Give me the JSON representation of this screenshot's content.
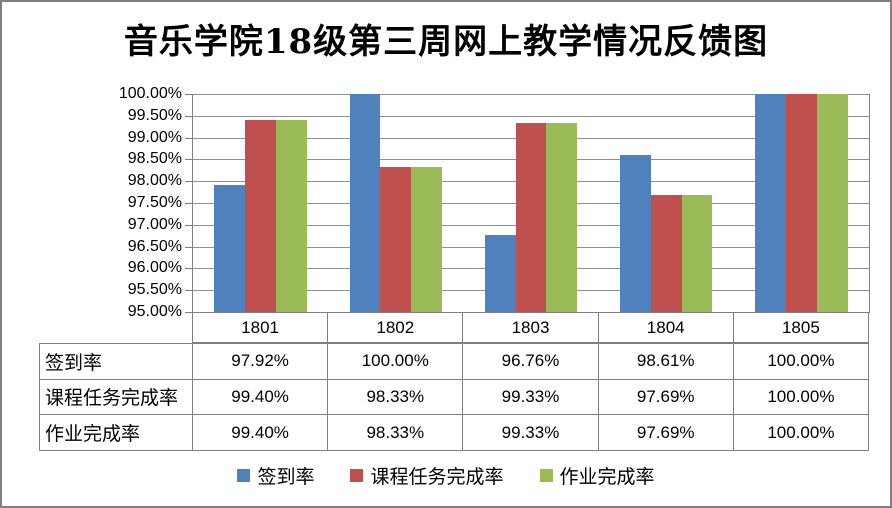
{
  "title": {
    "prefix": "音乐学院",
    "grade": "18",
    "suffix": "级第三周网上教学情况反馈图"
  },
  "chart_data": {
    "type": "bar",
    "title": "音乐学院18级第三周网上教学情况反馈图",
    "categories": [
      "1801",
      "1802",
      "1803",
      "1804",
      "1805"
    ],
    "series": [
      {
        "name": "签到率",
        "color": "#4F81BD",
        "values": [
          97.92,
          100.0,
          96.76,
          98.61,
          100.0
        ],
        "labels": [
          "97.92%",
          "100.00%",
          "96.76%",
          "98.61%",
          "100.00%"
        ]
      },
      {
        "name": "课程任务完成率",
        "color": "#C0504D",
        "values": [
          99.4,
          98.33,
          99.33,
          97.69,
          100.0
        ],
        "labels": [
          "99.40%",
          "98.33%",
          "99.33%",
          "97.69%",
          "100.00%"
        ]
      },
      {
        "name": "作业完成率",
        "color": "#9BBB59",
        "values": [
          99.4,
          98.33,
          99.33,
          97.69,
          100.0
        ],
        "labels": [
          "99.40%",
          "98.33%",
          "99.33%",
          "97.69%",
          "100.00%"
        ]
      }
    ],
    "ylim": [
      95,
      100
    ],
    "y_ticks": [
      "100.00%",
      "99.50%",
      "99.00%",
      "98.50%",
      "98.00%",
      "97.50%",
      "97.00%",
      "96.50%",
      "96.00%",
      "95.50%",
      "95.00%"
    ],
    "grid": true,
    "legend_position": "bottom",
    "xlabel": "",
    "ylabel": "",
    "gridline_color": "#919191",
    "axis_color": "#808080",
    "frame_color": "#7f7f7f",
    "background": "#ffffff"
  }
}
